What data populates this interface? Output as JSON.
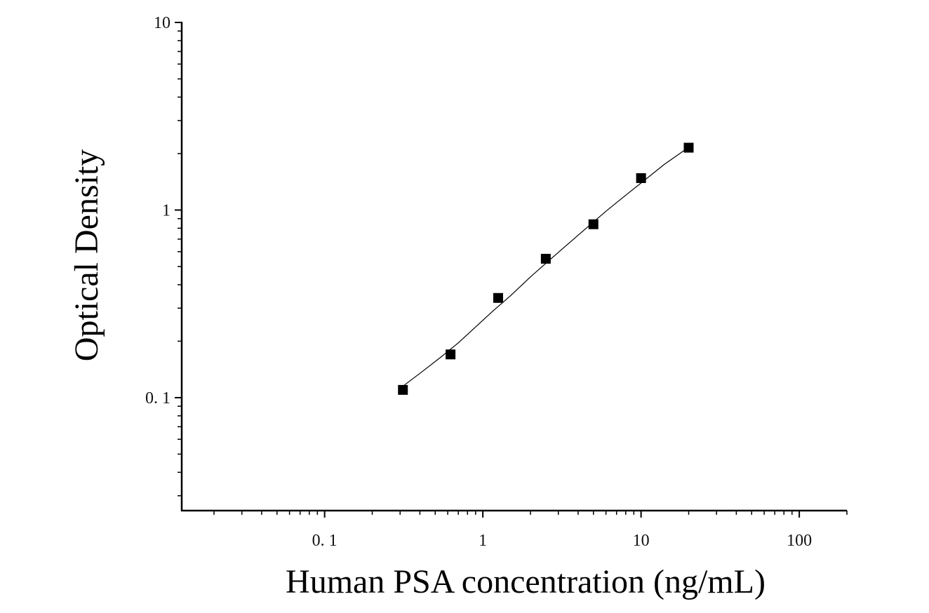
{
  "chart_data": {
    "type": "scatter",
    "title": "",
    "xlabel": "Human PSA concentration (ng/mL)",
    "ylabel": "Optical Density",
    "xscale": "log",
    "yscale": "log",
    "xlim": [
      0.0125,
      200
    ],
    "ylim": [
      0.025,
      10
    ],
    "x_ticks": [
      0.1,
      1,
      10,
      100
    ],
    "x_tick_labels": [
      "0. 1",
      "1",
      "10",
      "100"
    ],
    "y_ticks": [
      0.1,
      1,
      10
    ],
    "y_tick_labels": [
      "0. 1",
      "1",
      "10"
    ],
    "grid": false,
    "legend": "none",
    "series": [
      {
        "marker": "square",
        "color": "#000000",
        "x": [
          0.3125,
          0.625,
          1.25,
          2.5,
          5,
          10,
          20
        ],
        "y": [
          0.11,
          0.17,
          0.34,
          0.55,
          0.84,
          1.48,
          2.15
        ]
      }
    ],
    "fit_curve": {
      "style": "thin-line",
      "color": "#000000",
      "x": [
        0.3125,
        0.42,
        0.55,
        0.7,
        0.9,
        1.15,
        1.5,
        2.0,
        2.6,
        3.4,
        4.5,
        6.0,
        8.0,
        10.5,
        14.0,
        20.0
      ],
      "y": [
        0.115,
        0.139,
        0.166,
        0.196,
        0.238,
        0.288,
        0.35,
        0.44,
        0.535,
        0.652,
        0.8,
        0.985,
        1.2,
        1.44,
        1.75,
        2.16
      ]
    }
  }
}
